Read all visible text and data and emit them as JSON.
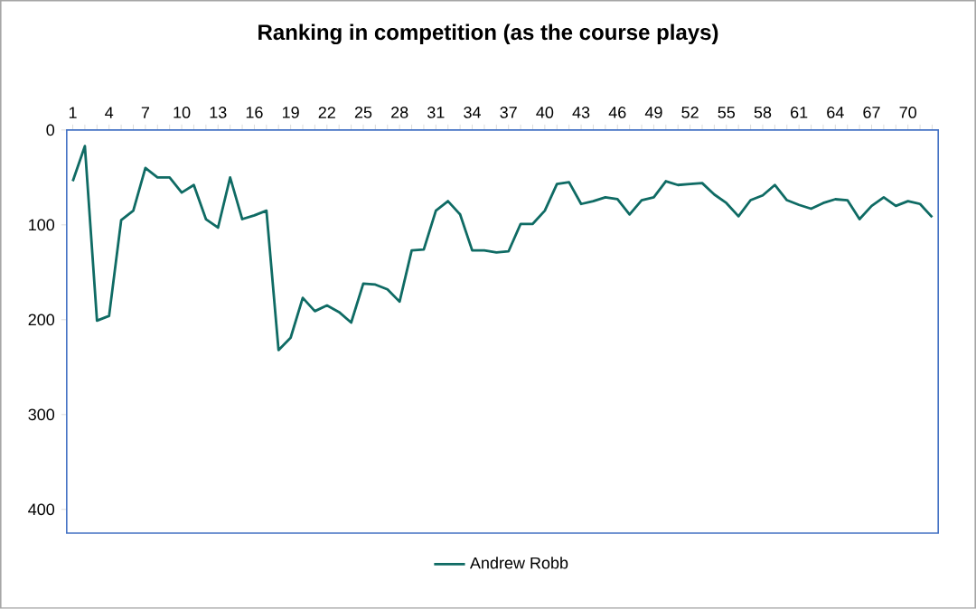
{
  "chart_data": {
    "type": "line",
    "title": "Ranking in competition (as the course plays)",
    "categories": [
      "1",
      null,
      null,
      "4",
      null,
      null,
      "7",
      null,
      null,
      "10",
      null,
      null,
      "13",
      null,
      null,
      "16",
      null,
      null,
      "19",
      null,
      null,
      "22",
      null,
      null,
      "25",
      null,
      null,
      "28",
      null,
      null,
      "31",
      null,
      null,
      "34",
      null,
      null,
      "37",
      null,
      null,
      "40",
      null,
      null,
      "43",
      null,
      null,
      "46",
      null,
      null,
      "49",
      null,
      null,
      "52",
      null,
      null,
      "55",
      null,
      null,
      "58",
      null,
      null,
      "61",
      null,
      null,
      "64",
      null,
      null,
      "67",
      null,
      null,
      "70",
      null,
      null
    ],
    "series": [
      {
        "name": "Andrew Robb",
        "color": "#0f6b64",
        "values": [
          54,
          17,
          201,
          196,
          95,
          85,
          40,
          50,
          50,
          66,
          58,
          94,
          103,
          50,
          94,
          90,
          85,
          232,
          219,
          177,
          191,
          185,
          192,
          203,
          162,
          163,
          168,
          181,
          127,
          126,
          85,
          75,
          89,
          127,
          127,
          129,
          128,
          99,
          99,
          85,
          57,
          55,
          78,
          75,
          71,
          73,
          89,
          74,
          71,
          54,
          58,
          57,
          56,
          68,
          77,
          91,
          74,
          69,
          58,
          74,
          79,
          83,
          77,
          73,
          74,
          94,
          80,
          71,
          80,
          75,
          78,
          92
        ]
      }
    ],
    "ylim": [
      425,
      0
    ],
    "yticks": [
      0,
      100,
      200,
      300,
      400
    ],
    "grid": false,
    "legend": "bottom",
    "marker": "none",
    "line_style": "solid"
  }
}
